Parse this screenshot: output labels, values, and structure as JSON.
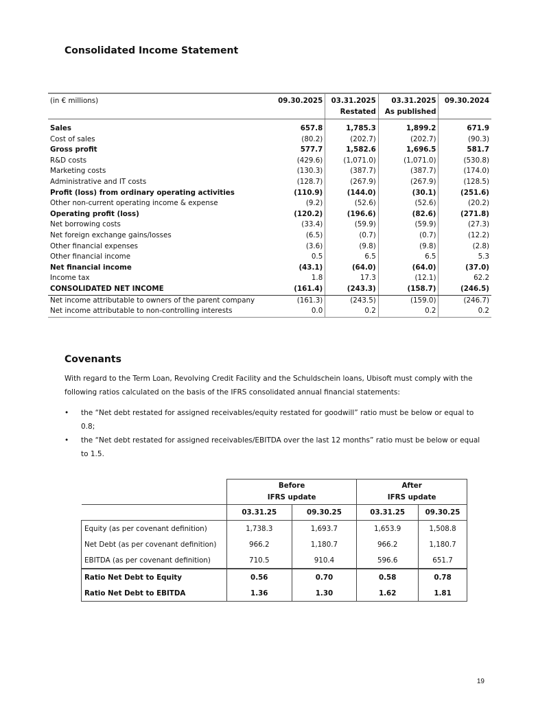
{
  "income": {
    "title": "Consolidated Income Statement",
    "unit_label": "(in € millions)",
    "columns": [
      {
        "line1": "09.30.2025",
        "line2": ""
      },
      {
        "line1": "03.31.2025",
        "line2": "Restated"
      },
      {
        "line1": "03.31.2025",
        "line2": "As published"
      },
      {
        "line1": "09.30.2024",
        "line2": ""
      }
    ],
    "rows": [
      {
        "label": "Sales",
        "values": [
          "657.8",
          "1,785.3",
          "1,899.2",
          "671.9"
        ],
        "bold": true
      },
      {
        "label": "Cost of sales",
        "values": [
          "(80.2)",
          "(202.7)",
          "(202.7)",
          "(90.3)"
        ],
        "bold": false
      },
      {
        "label": "Gross profit",
        "values": [
          "577.7",
          "1,582.6",
          "1,696.5",
          "581.7"
        ],
        "bold": true
      },
      {
        "label": "R&D costs",
        "values": [
          "(429.6)",
          "(1,071.0)",
          "(1,071.0)",
          "(530.8)"
        ],
        "bold": false
      },
      {
        "label": "Marketing costs",
        "values": [
          "(130.3)",
          "(387.7)",
          "(387.7)",
          "(174.0)"
        ],
        "bold": false
      },
      {
        "label": "Administrative and IT costs",
        "values": [
          "(128.7)",
          "(267.9)",
          "(267.9)",
          "(128.5)"
        ],
        "bold": false
      },
      {
        "label": "Profit (loss) from ordinary operating activities",
        "values": [
          "(110.9)",
          "(144.0)",
          "(30.1)",
          "(251.6)"
        ],
        "bold": true
      },
      {
        "label": "Other non-current operating income & expense",
        "values": [
          "(9.2)",
          "(52.6)",
          "(52.6)",
          "(20.2)"
        ],
        "bold": false
      },
      {
        "label": "Operating profit (loss)",
        "values": [
          "(120.2)",
          "(196.6)",
          "(82.6)",
          "(271.8)"
        ],
        "bold": true
      },
      {
        "label": "Net borrowing costs",
        "values": [
          "(33.4)",
          "(59.9)",
          "(59.9)",
          "(27.3)"
        ],
        "bold": false
      },
      {
        "label": "Net foreign exchange gains/losses",
        "values": [
          "(6.5)",
          "(0.7)",
          "(0.7)",
          "(12.2)"
        ],
        "bold": false
      },
      {
        "label": "Other financial expenses",
        "values": [
          "(3.6)",
          "(9.8)",
          "(9.8)",
          "(2.8)"
        ],
        "bold": false
      },
      {
        "label": "Other financial income",
        "values": [
          "0.5",
          "6.5",
          "6.5",
          "5.3"
        ],
        "bold": false
      },
      {
        "label": "Net financial income",
        "values": [
          "(43.1)",
          "(64.0)",
          "(64.0)",
          "(37.0)"
        ],
        "bold": true
      },
      {
        "label": "Income tax",
        "values": [
          "1.8",
          "17.3",
          "(12.1)",
          "62.2"
        ],
        "bold": false
      },
      {
        "label": "CONSOLIDATED NET INCOME",
        "values": [
          "(161.4)",
          "(243.3)",
          "(158.7)",
          "(246.5)"
        ],
        "bold": true
      },
      {
        "label": "Net income attributable to owners of the parent company",
        "values": [
          "(161.3)",
          "(243.5)",
          "(159.0)",
          "(246.7)"
        ],
        "bold": false
      },
      {
        "label": "Net income attributable to non-controlling interests",
        "values": [
          "0.0",
          "0.2",
          "0.2",
          "0.2"
        ],
        "bold": false
      }
    ]
  },
  "covenants": {
    "title": "Covenants",
    "intro": "With regard to the Term Loan, Revolving Credit Facility and the Schuldschein loans, Ubisoft must comply with the following ratios calculated on the basis of the IFRS consolidated annual financial statements:",
    "bullets": [
      "the “Net debt restated for assigned receivables/equity restated for goodwill” ratio must be below or equal to 0.8;",
      "the “Net debt restated for assigned receivables/EBITDA over the last 12 months” ratio must be below or equal to 1.5."
    ],
    "groups": [
      {
        "line1": "Before",
        "line2": "IFRS update"
      },
      {
        "line1": "After",
        "line2": "IFRS update"
      }
    ],
    "dates": [
      "03.31.25",
      "09.30.25",
      "03.31.25",
      "09.30.25"
    ],
    "rows": [
      {
        "label": "Equity (as per covenant definition)",
        "values": [
          "1,738.3",
          "1,693.7",
          "1,653.9",
          "1,508.8"
        ]
      },
      {
        "label": "Net Debt (as per covenant definition)",
        "values": [
          "966.2",
          "1,180.7",
          "966.2",
          "1,180.7"
        ]
      },
      {
        "label": "EBITDA (as per covenant definition)",
        "values": [
          "710.5",
          "910.4",
          "596.6",
          "651.7"
        ]
      },
      {
        "label": "Ratio Net Debt to Equity",
        "values": [
          "0.56",
          "0.70",
          "0.58",
          "0.78"
        ]
      },
      {
        "label": "Ratio Net Debt to EBITDA",
        "values": [
          "1.36",
          "1.30",
          "1.62",
          "1.81"
        ]
      }
    ]
  },
  "page_number": "19"
}
